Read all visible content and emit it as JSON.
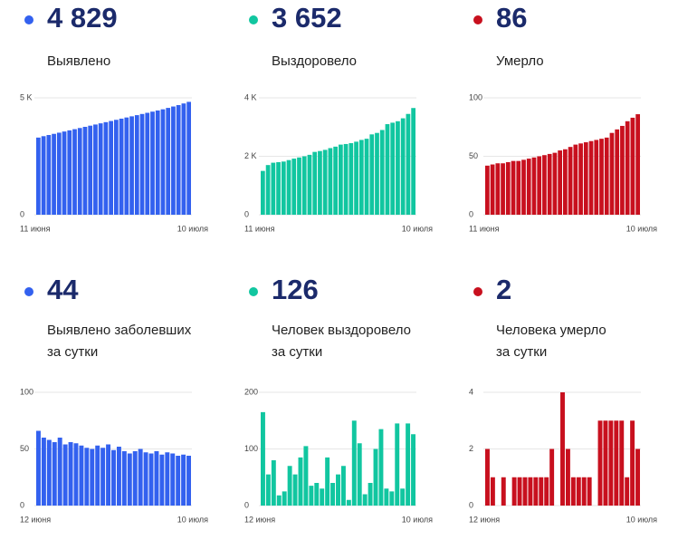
{
  "chart_data": [
    {
      "type": "bar",
      "title": "4 829",
      "subtitle": [
        "Выявлено"
      ],
      "color": "#3361ef",
      "categories": [
        "11 июня",
        null,
        null,
        null,
        null,
        null,
        null,
        null,
        null,
        null,
        null,
        null,
        null,
        null,
        null,
        null,
        null,
        null,
        null,
        null,
        null,
        null,
        null,
        null,
        null,
        null,
        null,
        null,
        null,
        "10 июля"
      ],
      "values": [
        3300,
        3360,
        3410,
        3460,
        3510,
        3560,
        3610,
        3660,
        3710,
        3760,
        3810,
        3860,
        3910,
        3960,
        4010,
        4060,
        4110,
        4160,
        4210,
        4260,
        4310,
        4360,
        4410,
        4460,
        4510,
        4570,
        4630,
        4690,
        4760,
        4829
      ],
      "ylim": [
        0,
        5000
      ],
      "yticks": [
        0,
        {
          "value": 5000,
          "label": "5 K"
        }
      ],
      "grid": true
    },
    {
      "type": "bar",
      "title": "3 652",
      "subtitle": [
        "Выздоровело"
      ],
      "color": "#11c6a0",
      "categories": [
        "11 июня",
        null,
        null,
        null,
        null,
        null,
        null,
        null,
        null,
        null,
        null,
        null,
        null,
        null,
        null,
        null,
        null,
        null,
        null,
        null,
        null,
        null,
        null,
        null,
        null,
        null,
        null,
        null,
        null,
        "10 июля"
      ],
      "values": [
        1500,
        1700,
        1780,
        1800,
        1820,
        1870,
        1920,
        1960,
        2000,
        2050,
        2150,
        2180,
        2220,
        2280,
        2330,
        2400,
        2420,
        2450,
        2500,
        2560,
        2600,
        2750,
        2800,
        2900,
        3100,
        3150,
        3200,
        3300,
        3450,
        3652
      ],
      "ylim": [
        0,
        4000
      ],
      "yticks": [
        0,
        {
          "value": 2000,
          "label": "2 K"
        },
        {
          "value": 4000,
          "label": "4 K"
        }
      ],
      "grid": true
    },
    {
      "type": "bar",
      "title": "86",
      "subtitle": [
        "Умерло"
      ],
      "color": "#c8101e",
      "categories": [
        "11 июня",
        null,
        null,
        null,
        null,
        null,
        null,
        null,
        null,
        null,
        null,
        null,
        null,
        null,
        null,
        null,
        null,
        null,
        null,
        null,
        null,
        null,
        null,
        null,
        null,
        null,
        null,
        null,
        null,
        "10 июля"
      ],
      "values": [
        42,
        43,
        44,
        44,
        45,
        46,
        46,
        47,
        48,
        49,
        50,
        51,
        52,
        53,
        55,
        56,
        58,
        60,
        61,
        62,
        63,
        64,
        65,
        66,
        70,
        73,
        76,
        80,
        83,
        86
      ],
      "ylim": [
        0,
        100
      ],
      "yticks": [
        0,
        50,
        100
      ],
      "grid": true
    },
    {
      "type": "bar",
      "title": "44",
      "subtitle": [
        "Выявлено заболевших",
        "за сутки"
      ],
      "color": "#3361ef",
      "categories": [
        "12 июня",
        null,
        null,
        null,
        null,
        null,
        null,
        null,
        null,
        null,
        null,
        null,
        null,
        null,
        null,
        null,
        null,
        null,
        null,
        null,
        null,
        null,
        null,
        null,
        null,
        null,
        null,
        null,
        "10 июля"
      ],
      "values": [
        66,
        60,
        58,
        56,
        60,
        54,
        56,
        55,
        53,
        51,
        50,
        53,
        51,
        54,
        49,
        52,
        48,
        46,
        48,
        50,
        47,
        46,
        48,
        45,
        47,
        46,
        44,
        45,
        44
      ],
      "ylim": [
        0,
        100
      ],
      "yticks": [
        0,
        50,
        100
      ],
      "grid": true
    },
    {
      "type": "bar",
      "title": "126",
      "subtitle": [
        "Человек выздоровело",
        "за сутки"
      ],
      "color": "#11c6a0",
      "categories": [
        "12 июня",
        null,
        null,
        null,
        null,
        null,
        null,
        null,
        null,
        null,
        null,
        null,
        null,
        null,
        null,
        null,
        null,
        null,
        null,
        null,
        null,
        null,
        null,
        null,
        null,
        null,
        null,
        null,
        "10 июля"
      ],
      "values": [
        165,
        55,
        80,
        18,
        25,
        70,
        55,
        85,
        105,
        35,
        40,
        30,
        85,
        40,
        55,
        70,
        10,
        150,
        110,
        20,
        40,
        100,
        135,
        30,
        25,
        145,
        30,
        145,
        126
      ],
      "ylim": [
        0,
        200
      ],
      "yticks": [
        0,
        100,
        200
      ],
      "grid": true
    },
    {
      "type": "bar",
      "title": "2",
      "subtitle": [
        "Человека умерло",
        "за сутки"
      ],
      "color": "#c8101e",
      "categories": [
        "12 июня",
        null,
        null,
        null,
        null,
        null,
        null,
        null,
        null,
        null,
        null,
        null,
        null,
        null,
        null,
        null,
        null,
        null,
        null,
        null,
        null,
        null,
        null,
        null,
        null,
        null,
        null,
        null,
        "10 июля"
      ],
      "values": [
        2,
        1,
        0,
        1,
        0,
        1,
        1,
        1,
        1,
        1,
        1,
        1,
        2,
        0,
        4,
        2,
        1,
        1,
        1,
        1,
        0,
        3,
        3,
        3,
        3,
        3,
        1,
        3,
        2
      ],
      "ylim": [
        0,
        4
      ],
      "yticks": [
        0,
        2,
        4
      ],
      "grid": true
    }
  ]
}
